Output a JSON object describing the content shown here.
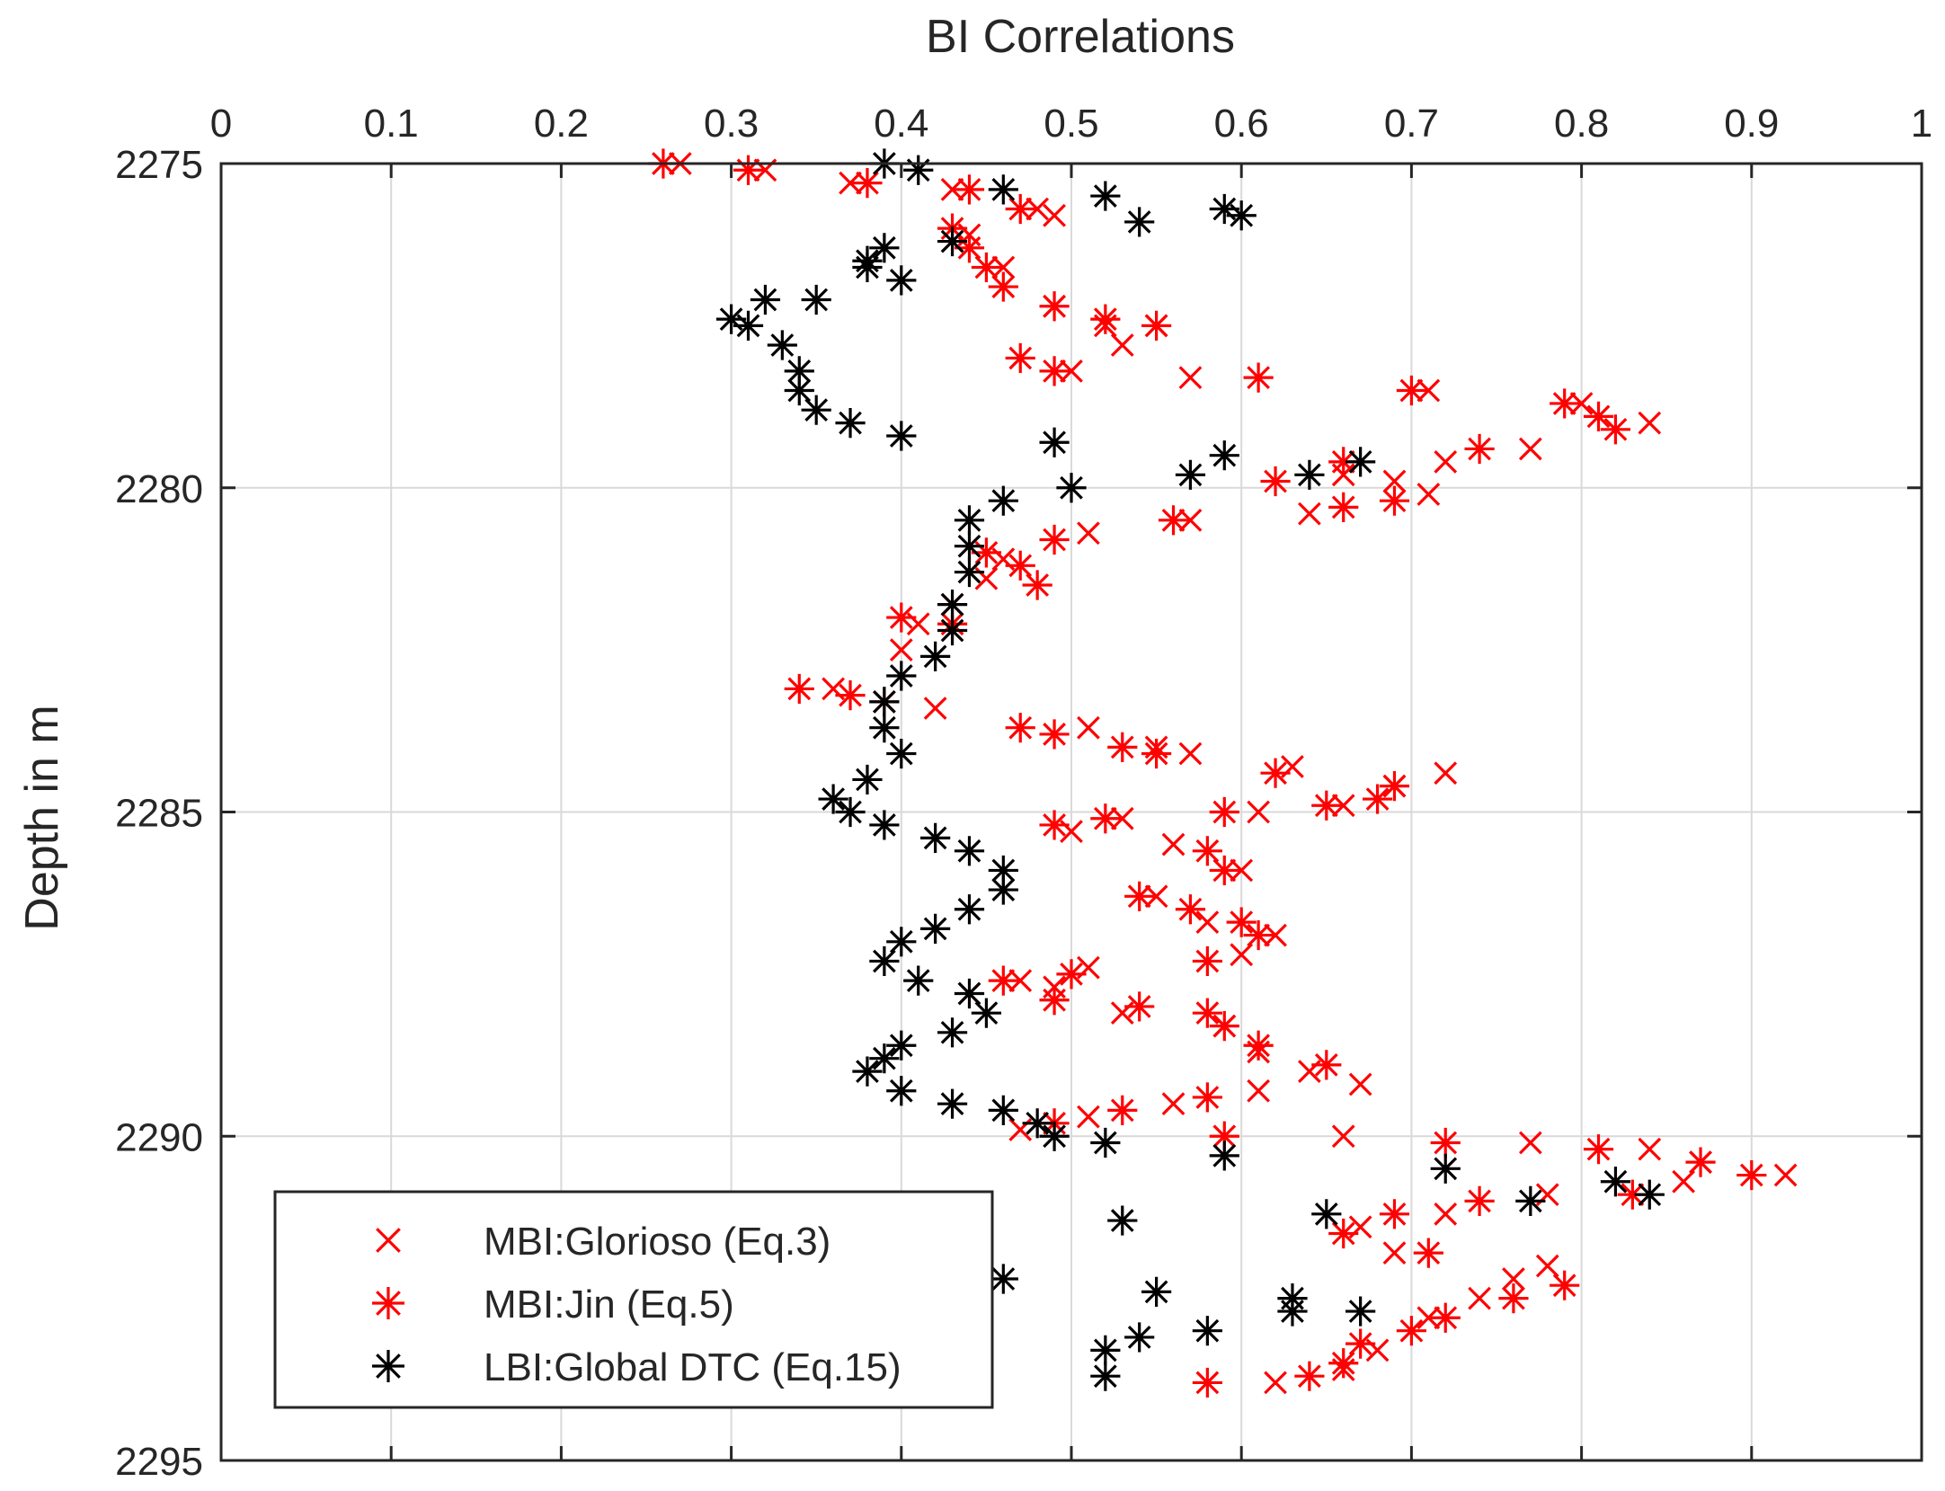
{
  "chart_data": {
    "type": "scatter",
    "title": "BI Correlations",
    "xlabel": "",
    "ylabel": "Depth in m",
    "xlim": [
      0,
      1
    ],
    "ylim": [
      2275,
      2295
    ],
    "y_reversed": true,
    "x_ticks": [
      0,
      0.1,
      0.2,
      0.3,
      0.4,
      0.5,
      0.6,
      0.7,
      0.8,
      0.9,
      1
    ],
    "x_tick_labels": [
      "0",
      "0.1",
      "0.2",
      "0.3",
      "0.4",
      "0.5",
      "0.6",
      "0.7",
      "0.8",
      "0.9",
      "1"
    ],
    "y_ticks": [
      2275,
      2280,
      2285,
      2290,
      2295
    ],
    "y_tick_labels": [
      "2275",
      "2280",
      "2285",
      "2290",
      "2295"
    ],
    "grid": true,
    "legend_position": "bottom-left",
    "colors": {
      "red": "#ff0000",
      "black": "#000000",
      "grid": "#d9d9d9",
      "axis": "#262626"
    },
    "series": [
      {
        "name": "MBI:Glorioso (Eq.3)",
        "marker": "x",
        "color": "#ff0000",
        "points": [
          [
            0.27,
            2275.0
          ],
          [
            0.32,
            2275.1
          ],
          [
            0.37,
            2275.3
          ],
          [
            0.43,
            2275.4
          ],
          [
            0.48,
            2275.7
          ],
          [
            0.49,
            2275.8
          ],
          [
            0.44,
            2276.1
          ],
          [
            0.46,
            2276.6
          ],
          [
            0.49,
            2277.2
          ],
          [
            0.52,
            2277.5
          ],
          [
            0.53,
            2277.8
          ],
          [
            0.55,
            2277.5
          ],
          [
            0.5,
            2278.2
          ],
          [
            0.57,
            2278.3
          ],
          [
            0.71,
            2278.5
          ],
          [
            0.8,
            2278.7
          ],
          [
            0.84,
            2279.0
          ],
          [
            0.77,
            2279.4
          ],
          [
            0.69,
            2279.9
          ],
          [
            0.71,
            2280.1
          ],
          [
            0.72,
            2279.6
          ],
          [
            0.66,
            2279.8
          ],
          [
            0.64,
            2280.4
          ],
          [
            0.57,
            2280.5
          ],
          [
            0.51,
            2280.7
          ],
          [
            0.46,
            2281.1
          ],
          [
            0.45,
            2281.4
          ],
          [
            0.43,
            2281.8
          ],
          [
            0.41,
            2282.1
          ],
          [
            0.4,
            2282.5
          ],
          [
            0.36,
            2283.1
          ],
          [
            0.42,
            2283.4
          ],
          [
            0.51,
            2283.7
          ],
          [
            0.55,
            2284.0
          ],
          [
            0.57,
            2284.1
          ],
          [
            0.63,
            2284.3
          ],
          [
            0.69,
            2284.6
          ],
          [
            0.72,
            2284.4
          ],
          [
            0.66,
            2284.9
          ],
          [
            0.61,
            2285.0
          ],
          [
            0.53,
            2285.1
          ],
          [
            0.5,
            2285.3
          ],
          [
            0.56,
            2285.5
          ],
          [
            0.6,
            2285.9
          ],
          [
            0.55,
            2286.3
          ],
          [
            0.58,
            2286.7
          ],
          [
            0.62,
            2286.9
          ],
          [
            0.6,
            2287.2
          ],
          [
            0.51,
            2287.4
          ],
          [
            0.47,
            2287.6
          ],
          [
            0.44,
            2287.8
          ],
          [
            0.49,
            2287.7
          ],
          [
            0.53,
            2288.1
          ],
          [
            0.59,
            2288.3
          ],
          [
            0.61,
            2288.7
          ],
          [
            0.64,
            2289.0
          ],
          [
            0.67,
            2289.2
          ],
          [
            0.61,
            2289.3
          ],
          [
            0.56,
            2289.5
          ],
          [
            0.51,
            2289.7
          ],
          [
            0.47,
            2289.9
          ],
          [
            0.66,
            2290.0
          ],
          [
            0.77,
            2290.1
          ],
          [
            0.84,
            2290.2
          ],
          [
            0.87,
            2290.4
          ],
          [
            0.92,
            2290.6
          ],
          [
            0.86,
            2290.7
          ],
          [
            0.78,
            2290.9
          ],
          [
            0.72,
            2291.2
          ],
          [
            0.67,
            2291.4
          ],
          [
            0.69,
            2291.8
          ],
          [
            0.78,
            2292.0
          ],
          [
            0.76,
            2292.2
          ],
          [
            0.74,
            2292.5
          ],
          [
            0.71,
            2292.8
          ],
          [
            0.68,
            2293.3
          ],
          [
            0.66,
            2293.6
          ],
          [
            0.62,
            2293.8
          ]
        ]
      },
      {
        "name": "MBI:Jin (Eq.5)",
        "marker": "asterisk",
        "color": "#ff0000",
        "points": [
          [
            0.26,
            2275.0
          ],
          [
            0.31,
            2275.1
          ],
          [
            0.38,
            2275.3
          ],
          [
            0.44,
            2275.4
          ],
          [
            0.47,
            2275.7
          ],
          [
            0.43,
            2276.0
          ],
          [
            0.44,
            2276.3
          ],
          [
            0.45,
            2276.6
          ],
          [
            0.46,
            2276.9
          ],
          [
            0.49,
            2277.2
          ],
          [
            0.52,
            2277.4
          ],
          [
            0.55,
            2277.5
          ],
          [
            0.47,
            2278.0
          ],
          [
            0.49,
            2278.2
          ],
          [
            0.61,
            2278.3
          ],
          [
            0.7,
            2278.5
          ],
          [
            0.79,
            2278.7
          ],
          [
            0.81,
            2278.9
          ],
          [
            0.82,
            2279.1
          ],
          [
            0.74,
            2279.4
          ],
          [
            0.66,
            2279.6
          ],
          [
            0.62,
            2279.9
          ],
          [
            0.69,
            2280.2
          ],
          [
            0.66,
            2280.3
          ],
          [
            0.56,
            2280.5
          ],
          [
            0.49,
            2280.8
          ],
          [
            0.45,
            2281.0
          ],
          [
            0.47,
            2281.2
          ],
          [
            0.48,
            2281.5
          ],
          [
            0.4,
            2282.0
          ],
          [
            0.43,
            2282.1
          ],
          [
            0.34,
            2283.1
          ],
          [
            0.37,
            2283.2
          ],
          [
            0.39,
            2283.3
          ],
          [
            0.47,
            2283.7
          ],
          [
            0.49,
            2283.8
          ],
          [
            0.53,
            2284.0
          ],
          [
            0.55,
            2284.1
          ],
          [
            0.62,
            2284.4
          ],
          [
            0.69,
            2284.6
          ],
          [
            0.68,
            2284.8
          ],
          [
            0.65,
            2284.9
          ],
          [
            0.59,
            2285.0
          ],
          [
            0.49,
            2285.2
          ],
          [
            0.52,
            2285.1
          ],
          [
            0.58,
            2285.6
          ],
          [
            0.59,
            2285.9
          ],
          [
            0.54,
            2286.3
          ],
          [
            0.57,
            2286.5
          ],
          [
            0.6,
            2286.7
          ],
          [
            0.61,
            2286.9
          ],
          [
            0.58,
            2287.3
          ],
          [
            0.5,
            2287.5
          ],
          [
            0.46,
            2287.6
          ],
          [
            0.49,
            2287.9
          ],
          [
            0.54,
            2288.0
          ],
          [
            0.58,
            2288.1
          ],
          [
            0.59,
            2288.3
          ],
          [
            0.61,
            2288.6
          ],
          [
            0.65,
            2288.9
          ],
          [
            0.58,
            2289.4
          ],
          [
            0.53,
            2289.6
          ],
          [
            0.49,
            2289.8
          ],
          [
            0.59,
            2290.0
          ],
          [
            0.72,
            2290.1
          ],
          [
            0.81,
            2290.2
          ],
          [
            0.87,
            2290.4
          ],
          [
            0.9,
            2290.6
          ],
          [
            0.83,
            2290.9
          ],
          [
            0.74,
            2291.0
          ],
          [
            0.69,
            2291.2
          ],
          [
            0.66,
            2291.5
          ],
          [
            0.71,
            2291.8
          ],
          [
            0.79,
            2292.3
          ],
          [
            0.76,
            2292.5
          ],
          [
            0.72,
            2292.8
          ],
          [
            0.7,
            2293.0
          ],
          [
            0.67,
            2293.2
          ],
          [
            0.66,
            2293.5
          ],
          [
            0.64,
            2293.7
          ],
          [
            0.58,
            2293.8
          ]
        ]
      },
      {
        "name": "LBI:Global DTC (Eq.15)",
        "marker": "asterisk",
        "color": "#000000",
        "points": [
          [
            0.39,
            2275.0
          ],
          [
            0.41,
            2275.1
          ],
          [
            0.46,
            2275.4
          ],
          [
            0.52,
            2275.5
          ],
          [
            0.54,
            2275.9
          ],
          [
            0.59,
            2275.7
          ],
          [
            0.6,
            2275.8
          ],
          [
            0.43,
            2276.2
          ],
          [
            0.39,
            2276.3
          ],
          [
            0.38,
            2276.6
          ],
          [
            0.4,
            2276.8
          ],
          [
            0.38,
            2276.5
          ],
          [
            0.32,
            2277.1
          ],
          [
            0.35,
            2277.1
          ],
          [
            0.3,
            2277.4
          ],
          [
            0.31,
            2277.5
          ],
          [
            0.33,
            2277.8
          ],
          [
            0.34,
            2278.2
          ],
          [
            0.34,
            2278.5
          ],
          [
            0.35,
            2278.8
          ],
          [
            0.37,
            2279.0
          ],
          [
            0.4,
            2279.2
          ],
          [
            0.49,
            2279.3
          ],
          [
            0.59,
            2279.5
          ],
          [
            0.64,
            2279.8
          ],
          [
            0.67,
            2279.6
          ],
          [
            0.57,
            2279.8
          ],
          [
            0.5,
            2280.0
          ],
          [
            0.46,
            2280.2
          ],
          [
            0.44,
            2280.5
          ],
          [
            0.44,
            2280.9
          ],
          [
            0.44,
            2281.3
          ],
          [
            0.43,
            2281.8
          ],
          [
            0.43,
            2282.2
          ],
          [
            0.42,
            2282.6
          ],
          [
            0.4,
            2282.9
          ],
          [
            0.39,
            2283.3
          ],
          [
            0.39,
            2283.7
          ],
          [
            0.4,
            2284.1
          ],
          [
            0.38,
            2284.5
          ],
          [
            0.36,
            2284.8
          ],
          [
            0.37,
            2285.0
          ],
          [
            0.39,
            2285.2
          ],
          [
            0.42,
            2285.4
          ],
          [
            0.44,
            2285.6
          ],
          [
            0.46,
            2285.9
          ],
          [
            0.46,
            2286.2
          ],
          [
            0.44,
            2286.5
          ],
          [
            0.42,
            2286.8
          ],
          [
            0.4,
            2287.0
          ],
          [
            0.39,
            2287.3
          ],
          [
            0.41,
            2287.6
          ],
          [
            0.44,
            2287.8
          ],
          [
            0.45,
            2288.1
          ],
          [
            0.43,
            2288.4
          ],
          [
            0.4,
            2288.6
          ],
          [
            0.39,
            2288.8
          ],
          [
            0.38,
            2289.0
          ],
          [
            0.4,
            2289.3
          ],
          [
            0.43,
            2289.5
          ],
          [
            0.46,
            2289.6
          ],
          [
            0.48,
            2289.8
          ],
          [
            0.49,
            2290.0
          ],
          [
            0.52,
            2290.1
          ],
          [
            0.59,
            2290.3
          ],
          [
            0.72,
            2290.5
          ],
          [
            0.82,
            2290.7
          ],
          [
            0.84,
            2290.9
          ],
          [
            0.77,
            2291.0
          ],
          [
            0.65,
            2291.2
          ],
          [
            0.53,
            2291.3
          ],
          [
            0.46,
            2292.2
          ],
          [
            0.55,
            2292.4
          ],
          [
            0.63,
            2292.5
          ],
          [
            0.63,
            2292.7
          ],
          [
            0.67,
            2292.7
          ],
          [
            0.58,
            2293.0
          ],
          [
            0.54,
            2293.1
          ],
          [
            0.52,
            2293.3
          ],
          [
            0.52,
            2293.7
          ]
        ]
      }
    ]
  }
}
